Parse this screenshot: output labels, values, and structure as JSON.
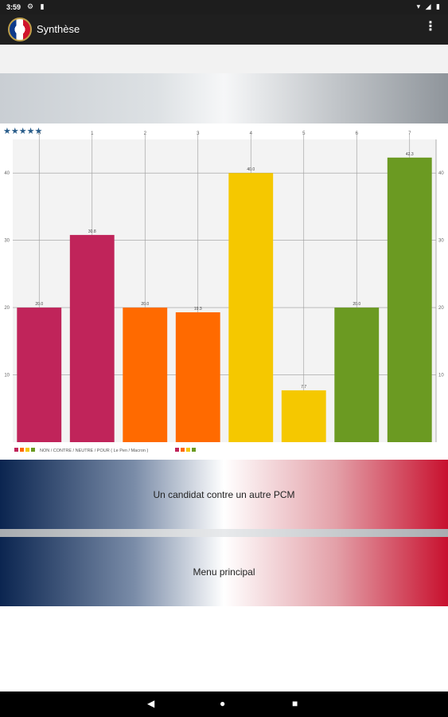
{
  "status": {
    "time": "3:59",
    "left_icons": "⚙ ▮",
    "right_icons": "▾ ◢ ▮"
  },
  "appbar": {
    "title": "Synthèse",
    "menu_icon": "⋮"
  },
  "rating": {
    "stars": "★★★★★"
  },
  "chart_data": {
    "type": "bar",
    "categories": [
      "0",
      "1",
      "2",
      "3",
      "4",
      "5",
      "6",
      "7"
    ],
    "values": [
      20.0,
      30.8,
      20.0,
      19.3,
      40.0,
      7.7,
      20.0,
      42.3
    ],
    "value_labels": [
      "20.0",
      "30.8",
      "20.0",
      "19.3",
      "40.0",
      "7.7",
      "20.0",
      "42.3"
    ],
    "colors": [
      "#c0245a",
      "#c0245a",
      "#ff6a00",
      "#ff6a00",
      "#f5c800",
      "#f5c800",
      "#6b9a22",
      "#6b9a22"
    ],
    "ylim": [
      0,
      45
    ],
    "yticks": [
      "10",
      "20",
      "30",
      "40"
    ],
    "grid": true,
    "legend": {
      "text": "NON / CONTRE / NEUTRE / POUR ( Le Pen / Macron )",
      "colors": [
        "#c0245a",
        "#ff6a00",
        "#f5c800",
        "#6b9a22"
      ],
      "placement": "bottom-left"
    }
  },
  "buttons": {
    "candidate": "Un candidat contre un autre PCM",
    "main_menu": "Menu principal"
  },
  "nav": {
    "back": "◀",
    "home": "●",
    "recent": "■"
  }
}
